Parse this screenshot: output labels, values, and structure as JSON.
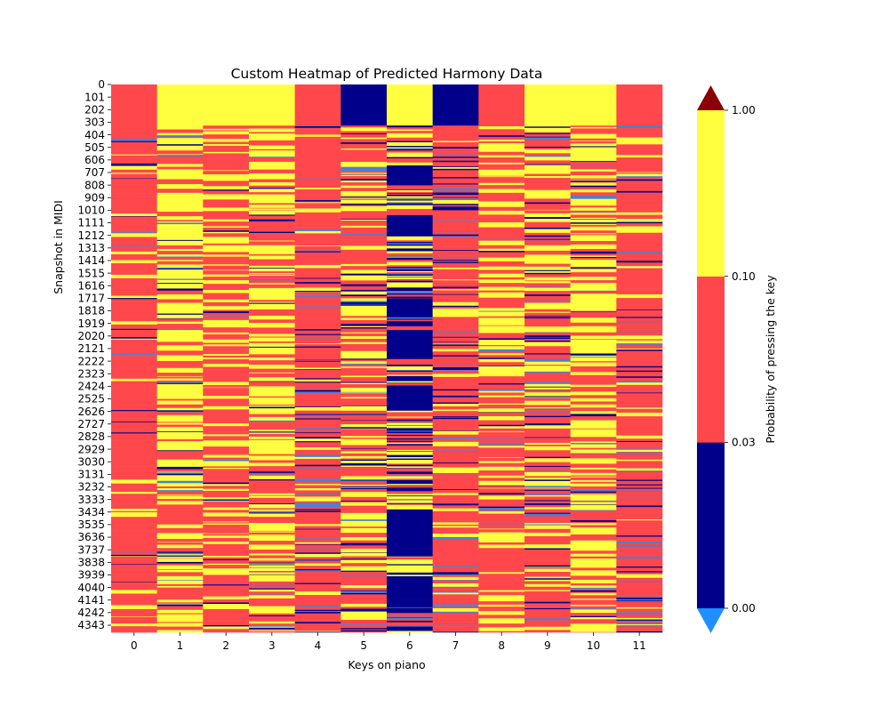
{
  "chart_data": {
    "type": "heatmap",
    "title": "Custom Heatmap of Predicted Harmony Data",
    "xlabel": "Keys on piano",
    "ylabel": "Snapshot in MIDI",
    "x_categories": [
      "0",
      "1",
      "2",
      "3",
      "4",
      "5",
      "6",
      "7",
      "8",
      "9",
      "10",
      "11"
    ],
    "y_tick_labels": [
      "0",
      "101",
      "202",
      "303",
      "404",
      "505",
      "606",
      "707",
      "808",
      "909",
      "1010",
      "1111",
      "1212",
      "1313",
      "1414",
      "1515",
      "1616",
      "1717",
      "1818",
      "1919",
      "2020",
      "2121",
      "2222",
      "2323",
      "2424",
      "2525",
      "2626",
      "2727",
      "2828",
      "2929",
      "3030",
      "3131",
      "3232",
      "3333",
      "3434",
      "3535",
      "3636",
      "3737",
      "3838",
      "3939",
      "4040",
      "4141",
      "4242",
      "4343"
    ],
    "y_tick_step": 101,
    "n_rows": 4400,
    "colorbar": {
      "label": "Probability of pressing the key",
      "boundaries": [
        0.0,
        0.03,
        0.1,
        1.0
      ],
      "tick_labels": [
        "0.00",
        "0.03",
        "0.10",
        "1.00"
      ],
      "colors": [
        "#00008b",
        "#ff474c",
        "#ffff40"
      ],
      "under_color": "#1e90ff",
      "over_color": "#8b0000"
    },
    "segments": [
      [
        [
          0,
          435,
          "red"
        ],
        [
          435,
          455,
          "blue"
        ],
        [
          455,
          4400,
          "mix"
        ]
      ],
      [
        [
          0,
          330,
          "yellow"
        ],
        [
          330,
          4400,
          "mix"
        ]
      ],
      [
        [
          0,
          330,
          "yellow"
        ],
        [
          330,
          4400,
          "mix"
        ]
      ],
      [
        [
          0,
          330,
          "yellow"
        ],
        [
          330,
          4400,
          "mix"
        ]
      ],
      [
        [
          0,
          330,
          "red"
        ],
        [
          330,
          4400,
          "mix"
        ]
      ],
      [
        [
          0,
          330,
          "navy"
        ],
        [
          330,
          4400,
          "mix"
        ]
      ],
      [
        [
          0,
          330,
          "yellow"
        ],
        [
          330,
          650,
          "mix"
        ],
        [
          650,
          800,
          "navy"
        ],
        [
          800,
          1050,
          "mix"
        ],
        [
          1050,
          1220,
          "navy"
        ],
        [
          1220,
          1720,
          "mix"
        ],
        [
          1720,
          1870,
          "navy"
        ],
        [
          1870,
          1980,
          "mix"
        ],
        [
          1980,
          2200,
          "navy"
        ],
        [
          2200,
          2420,
          "mix"
        ],
        [
          2420,
          2620,
          "navy"
        ],
        [
          2620,
          3420,
          "mix"
        ],
        [
          3420,
          3780,
          "navy"
        ],
        [
          3780,
          3950,
          "mix"
        ],
        [
          3950,
          4120,
          "navy"
        ],
        [
          4120,
          4400,
          "mix"
        ]
      ],
      [
        [
          0,
          330,
          "navy"
        ],
        [
          330,
          4400,
          "mix"
        ]
      ],
      [
        [
          0,
          330,
          "red"
        ],
        [
          330,
          4400,
          "mix"
        ]
      ],
      [
        [
          0,
          330,
          "yellow"
        ],
        [
          330,
          4400,
          "mix"
        ]
      ],
      [
        [
          0,
          330,
          "yellow"
        ],
        [
          330,
          4400,
          "mix"
        ]
      ],
      [
        [
          0,
          330,
          "red"
        ],
        [
          330,
          4400,
          "mix"
        ]
      ]
    ],
    "mix_weights": [
      {
        "red": 0.78,
        "yellow": 0.12,
        "navy": 0.06,
        "blue": 0.04
      },
      {
        "red": 0.35,
        "yellow": 0.55,
        "navy": 0.07,
        "blue": 0.03
      },
      {
        "red": 0.62,
        "yellow": 0.32,
        "navy": 0.04,
        "blue": 0.02
      },
      {
        "red": 0.42,
        "yellow": 0.45,
        "navy": 0.08,
        "blue": 0.05
      },
      {
        "red": 0.62,
        "yellow": 0.14,
        "navy": 0.14,
        "blue": 0.1
      },
      {
        "red": 0.4,
        "yellow": 0.33,
        "navy": 0.18,
        "blue": 0.09
      },
      {
        "red": 0.22,
        "yellow": 0.2,
        "navy": 0.48,
        "blue": 0.1
      },
      {
        "red": 0.64,
        "yellow": 0.12,
        "navy": 0.16,
        "blue": 0.08
      },
      {
        "red": 0.52,
        "yellow": 0.38,
        "navy": 0.06,
        "blue": 0.04
      },
      {
        "red": 0.42,
        "yellow": 0.34,
        "navy": 0.16,
        "blue": 0.08
      },
      {
        "red": 0.38,
        "yellow": 0.48,
        "navy": 0.1,
        "blue": 0.04
      },
      {
        "red": 0.68,
        "yellow": 0.14,
        "navy": 0.08,
        "blue": 0.1
      }
    ]
  }
}
